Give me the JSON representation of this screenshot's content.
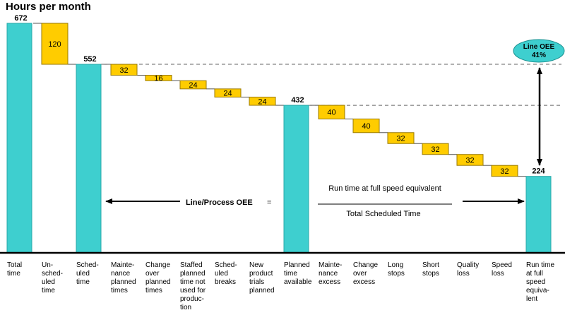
{
  "title": "Hours per month",
  "chart_data": {
    "type": "bar",
    "subtype": "waterfall",
    "title": "Hours per month",
    "categories": [
      "Total\ntime",
      "Un-\nsched-\nuled\ntime",
      "Sched-\nuled\ntime",
      "Mainte-\nnance\nplanned\ntimes",
      "Change\nover\nplanned\ntimes",
      "Staffed\nplanned\ntime not\nused for\nproduc-\ntion",
      "Sched-\nuled\nbreaks",
      "New\nproduct\ntrials\nplanned",
      "Planned\ntime\navailable",
      "Mainte-\nnance\nexcess",
      "Change\nover\nexcess",
      "Long\nstops",
      "Short\nstops",
      "Quality\nloss",
      "Speed\nloss",
      "Run time\nat full\nspeed\nequiva-\nlent"
    ],
    "values": [
      672,
      120,
      552,
      32,
      16,
      24,
      24,
      24,
      432,
      40,
      40,
      32,
      32,
      32,
      32,
      224
    ],
    "bar_kinds": [
      "total",
      "loss",
      "total",
      "loss",
      "loss",
      "loss",
      "loss",
      "loss",
      "total",
      "loss",
      "loss",
      "loss",
      "loss",
      "loss",
      "loss",
      "total"
    ],
    "ylim": [
      0,
      672
    ],
    "colors": {
      "total": "#3ecfcf",
      "loss": "#ffcc00",
      "loss_border": "#9a7a00",
      "ellipse": "#3ecfcf"
    }
  },
  "annotations": {
    "oee_label": "Line OEE",
    "oee_value": "41%",
    "formula_label": "Line/Process OEE",
    "formula_equals": "=",
    "numerator": "Run time at full speed equivalent",
    "denominator": "Total Scheduled Time"
  }
}
